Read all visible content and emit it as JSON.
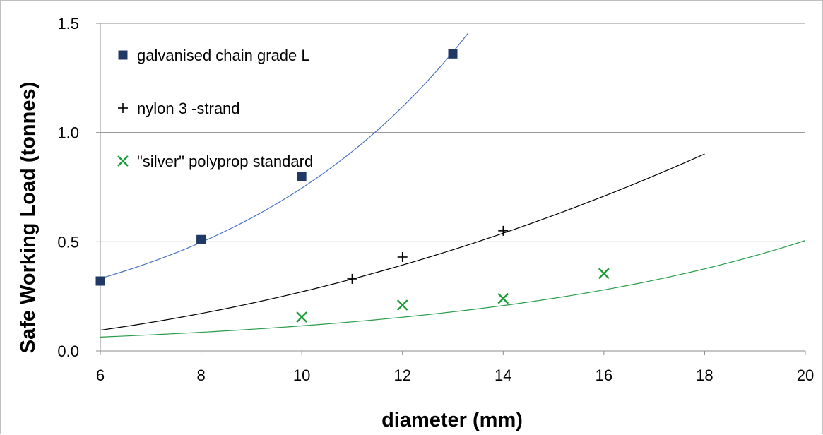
{
  "chart_data": {
    "type": "scatter",
    "xlabel": "diameter (mm)",
    "ylabel": "Safe Working Load (tonnes)",
    "xlim": [
      6,
      20
    ],
    "ylim": [
      0,
      1.5
    ],
    "x_ticks": [
      "6",
      "8",
      "10",
      "12",
      "14",
      "16",
      "18",
      "20"
    ],
    "y_ticks": [
      "0.0",
      "0.5",
      "1.0",
      "1.5"
    ],
    "grid": "horizontal",
    "legend_position": "top-left",
    "series": [
      {
        "name": "galvanised chain grade L",
        "marker": "square",
        "color": "#1f3864",
        "trend_color": "#4a72c4",
        "points": [
          {
            "x": 6,
            "y": 0.32
          },
          {
            "x": 8,
            "y": 0.51
          },
          {
            "x": 10,
            "y": 0.8
          },
          {
            "x": 13,
            "y": 1.36
          }
        ],
        "trend": {
          "type": "exponential",
          "a": 0.0985,
          "b": 0.2024,
          "x_from": 6,
          "x_to": 13.3
        }
      },
      {
        "name": "nylon 3 -strand",
        "marker": "plus",
        "color": "#000000",
        "trend_color": "#000000",
        "points": [
          {
            "x": 11,
            "y": 0.33
          },
          {
            "x": 12,
            "y": 0.43
          },
          {
            "x": 14,
            "y": 0.55
          }
        ],
        "trend": {
          "type": "power",
          "a": 0.00243,
          "b": 2.047,
          "x_from": 6,
          "x_to": 18
        }
      },
      {
        "name": "\"silver\" polyprop standard",
        "marker": "x",
        "color": "#1e9c3a",
        "trend_color": "#2a9c4a",
        "points": [
          {
            "x": 10,
            "y": 0.155
          },
          {
            "x": 12,
            "y": 0.21
          },
          {
            "x": 14,
            "y": 0.24
          },
          {
            "x": 16,
            "y": 0.355
          }
        ],
        "trend": {
          "type": "exponential",
          "a": 0.0261,
          "b": 0.1482,
          "x_from": 6,
          "x_to": 20
        }
      }
    ]
  }
}
